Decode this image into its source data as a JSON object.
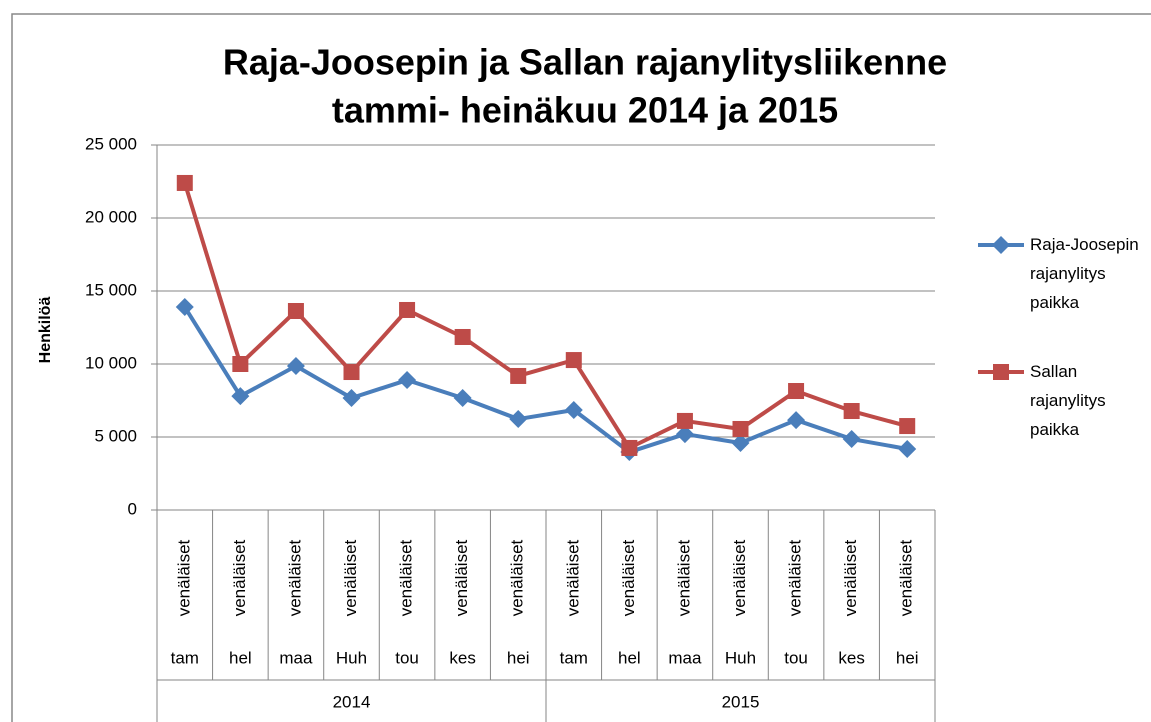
{
  "chart_data": {
    "type": "line",
    "title": [
      "Raja-Joosepin ja Sallan rajanylitysliikenne",
      "tammi- heinäkuu 2014 ja  2015"
    ],
    "y_label": "Henkilöä",
    "categories": [
      "tam",
      "hel",
      "maa",
      "Huh",
      "tou",
      "kes",
      "hei",
      "tam",
      "hel",
      "maa",
      "Huh",
      "tou",
      "kes",
      "hei"
    ],
    "category_inner": [
      "venäläiset",
      "venäläiset",
      "venäläiset",
      "venäläiset",
      "venäläiset",
      "venäläiset",
      "venäläiset",
      "venäläiset",
      "venäläiset",
      "venäläiset",
      "venäläiset",
      "venäläiset",
      "venäläiset",
      "venäläiset"
    ],
    "category_groups": [
      {
        "label": "2014",
        "count": 7
      },
      {
        "label": "2015",
        "count": 7
      }
    ],
    "series": [
      {
        "name": "Raja-Joosepin rajanylitys paikka",
        "color": "#4a7ebb",
        "marker": "diamond",
        "values": [
          13900,
          7800,
          9860,
          7670,
          8900,
          7670,
          6230,
          6850,
          3970,
          5200,
          4590,
          6160,
          4860,
          4180
        ]
      },
      {
        "name": "Sallan rajanylitys paikka",
        "color": "#be4b48",
        "marker": "square",
        "values": [
          22400,
          10000,
          13630,
          9450,
          13700,
          11850,
          9180,
          10270,
          4250,
          6100,
          5550,
          8150,
          6780,
          5750
        ]
      }
    ],
    "ylim": [
      0,
      25000
    ],
    "yticks": [
      0,
      {
        "value": 5000,
        "label": "5 000"
      },
      {
        "value": 10000,
        "label": "10 000"
      },
      {
        "value": 15000,
        "label": "15 000"
      },
      {
        "value": 20000,
        "label": "20 000"
      },
      {
        "value": 25000,
        "label": "25 000"
      }
    ],
    "grid": true,
    "legend": "right"
  }
}
